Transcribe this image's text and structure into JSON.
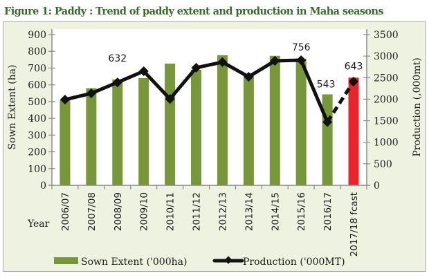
{
  "title": "Figure 1: Paddy : Trend of paddy extent and production in Maha seasons",
  "chart_data": {
    "type": "bar",
    "title": "Figure 1: Paddy : Trend of paddy extent and production in Maha seasons",
    "xlabel": "Year",
    "ylabel": "Sown Extent (ha)",
    "y2label": "Production  (,000mt)",
    "ylim": [
      0,
      900
    ],
    "y2lim": [
      0,
      3500
    ],
    "yticks": [
      0,
      100,
      200,
      300,
      400,
      500,
      600,
      700,
      800,
      900
    ],
    "y2ticks": [
      0,
      500,
      1000,
      1500,
      2000,
      2500,
      3000,
      3500
    ],
    "grid": false,
    "legend_position": "bottom",
    "categories": [
      "2006/07",
      "2007/08",
      "2008/09",
      "2009/10",
      "2010/11",
      "2011/12",
      "2012/13",
      "2013/14",
      "2014/15",
      "2015/16",
      "2016/17",
      "2017/18 fcast"
    ],
    "series": [
      {
        "name": "Sown Extent ('000ha)",
        "type": "bar",
        "axis": "left",
        "color": "#77973a",
        "forecast_color": "#e8242c",
        "values": [
          510,
          580,
          632,
          640,
          727,
          690,
          777,
          665,
          773,
          756,
          543,
          643
        ]
      },
      {
        "name": "Production ('000MT)",
        "type": "line",
        "axis": "right",
        "color": "#111111",
        "values": [
          1990,
          2135,
          2390,
          2650,
          2005,
          2730,
          2860,
          2520,
          2890,
          2905,
          1470,
          2410
        ]
      }
    ],
    "annotations": [
      {
        "category": "2008/09",
        "text": "632"
      },
      {
        "category": "2015/16",
        "text": "756"
      },
      {
        "category": "2016/17",
        "text": "543"
      },
      {
        "category": "2017/18 fcast",
        "text": "643"
      }
    ]
  }
}
